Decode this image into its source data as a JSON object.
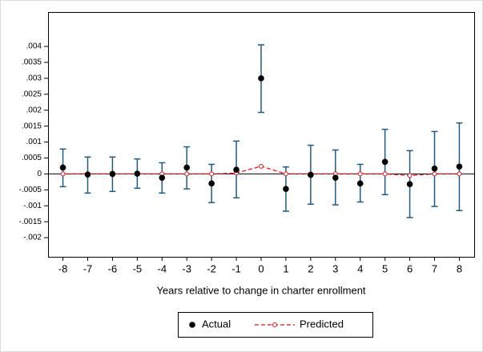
{
  "chart_data": {
    "type": "errorbar",
    "xlabel": "Years relative to change in charter enrollment",
    "x": [
      -8,
      -7,
      -6,
      -5,
      -4,
      -3,
      -2,
      -1,
      0,
      1,
      2,
      3,
      4,
      5,
      6,
      7,
      8
    ],
    "xlim": [
      -8.6,
      8.6
    ],
    "ylim": [
      -0.0026,
      0.00508
    ],
    "yticks": [
      {
        "value": 0.004,
        "label": ".004"
      },
      {
        "value": 0.0035,
        "label": ".0035"
      },
      {
        "value": 0.003,
        "label": ".003"
      },
      {
        "value": 0.0025,
        "label": ".0025"
      },
      {
        "value": 0.002,
        "label": ".002"
      },
      {
        "value": 0.0015,
        "label": ".0015"
      },
      {
        "value": 0.001,
        "label": ".001"
      },
      {
        "value": 0.0005,
        "label": ".0005"
      },
      0,
      {
        "value": -0.0005,
        "label": "-.0005"
      },
      {
        "value": -0.001,
        "label": "-.001"
      },
      {
        "value": -0.0015,
        "label": "-.0015"
      },
      {
        "value": -0.002,
        "label": "-.002"
      }
    ],
    "errorbar_color": "#1f5a85",
    "series": [
      {
        "name": "Actual",
        "color": "#000000",
        "values": [
          0.0002,
          -2e-05,
          0,
          1e-05,
          -0.00012,
          0.0002,
          -0.0003,
          0.00013,
          0.003,
          -0.00047,
          -3e-05,
          -0.00012,
          -0.0003,
          0.00038,
          -0.00032,
          0.00017,
          0.00023
        ],
        "lower": [
          -0.0004,
          -0.0006,
          -0.00055,
          -0.00045,
          -0.0006,
          -0.00047,
          -0.0009,
          -0.00075,
          0.00193,
          -0.00117,
          -0.00095,
          -0.00097,
          -0.00088,
          -0.00065,
          -0.00137,
          -0.00102,
          -0.00115
        ],
        "upper": [
          0.00078,
          0.00053,
          0.00053,
          0.00047,
          0.00035,
          0.00085,
          0.0003,
          0.00103,
          0.00405,
          0.00022,
          0.0009,
          0.00075,
          0.0003,
          0.0014,
          0.00073,
          0.00133,
          0.0016
        ]
      },
      {
        "name": "Predicted",
        "color": "#e8141c",
        "values": [
          0,
          0,
          0,
          0,
          0,
          0,
          0,
          3e-05,
          0.00024,
          0,
          0,
          0,
          0,
          0,
          -5e-05,
          0,
          0
        ]
      }
    ]
  }
}
